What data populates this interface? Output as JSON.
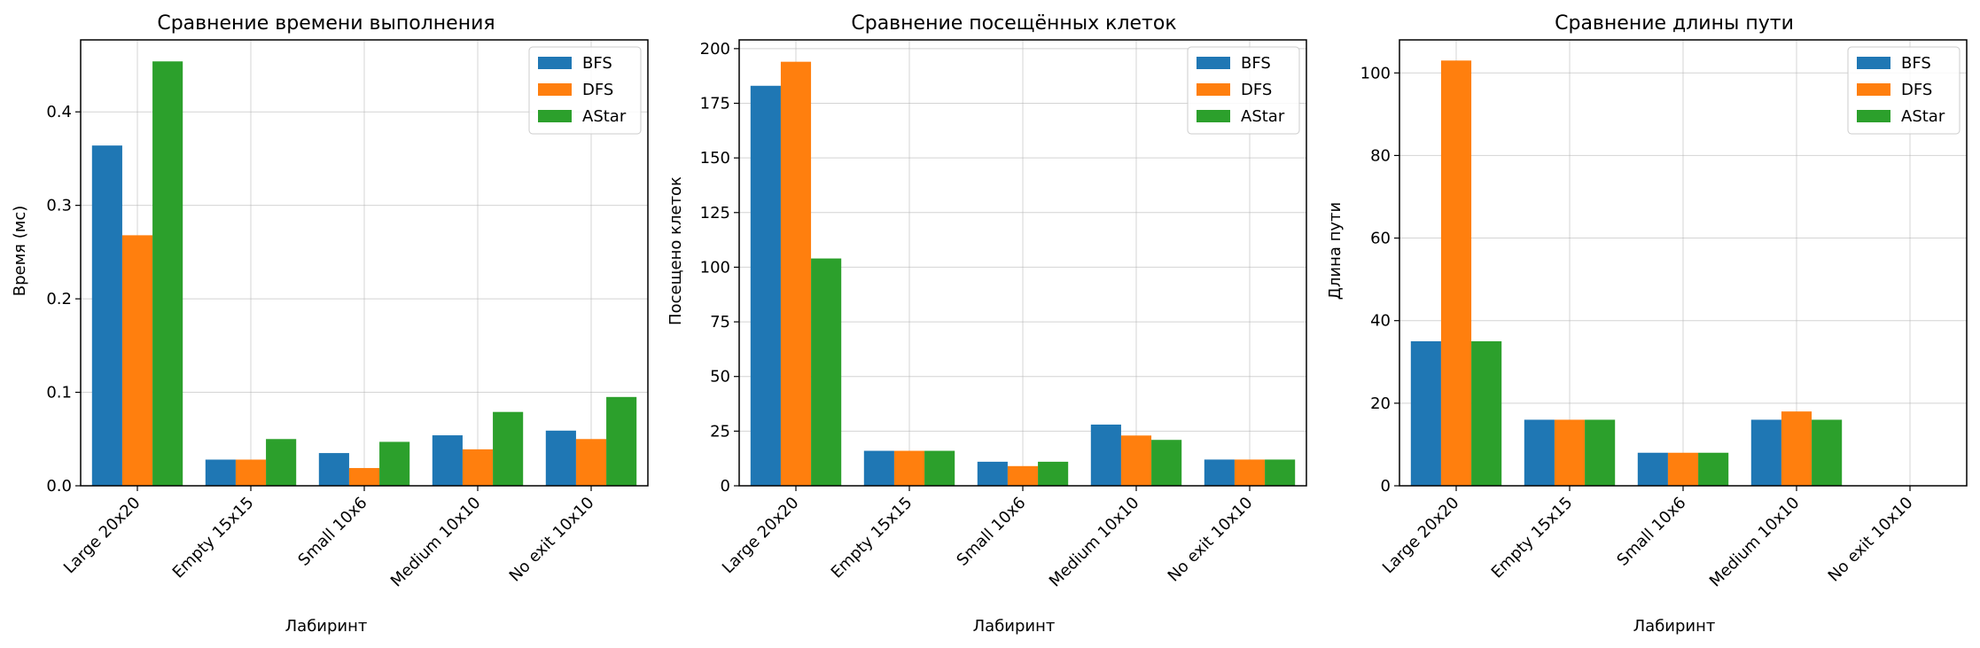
{
  "colors": {
    "BFS": "#1f77b4",
    "DFS": "#ff7f0e",
    "AStar": "#2ca02c",
    "grid": "#b0b0b0"
  },
  "chart_data": [
    {
      "type": "bar",
      "title": "Сравнение времени выполнения",
      "xlabel": "Лабиринт",
      "ylabel": "Время (мс)",
      "categories": [
        "Large 20x20",
        "Empty 15x15",
        "Small 10x6",
        "Medium 10x10",
        "No exit 10x10"
      ],
      "series": [
        {
          "name": "BFS",
          "values": [
            0.364,
            0.028,
            0.035,
            0.054,
            0.059
          ]
        },
        {
          "name": "DFS",
          "values": [
            0.268,
            0.028,
            0.019,
            0.039,
            0.05
          ]
        },
        {
          "name": "AStar",
          "values": [
            0.454,
            0.05,
            0.047,
            0.079,
            0.095
          ]
        }
      ],
      "ylim": [
        0,
        0.477
      ],
      "yticks": [
        0.0,
        0.1,
        0.2,
        0.3,
        0.4
      ],
      "ytick_labels": [
        "0.0",
        "0.1",
        "0.2",
        "0.3",
        "0.4"
      ],
      "grid": true,
      "legend": "top-right"
    },
    {
      "type": "bar",
      "title": "Сравнение посещённых клеток",
      "xlabel": "Лабиринт",
      "ylabel": "Посещено клеток",
      "categories": [
        "Large 20x20",
        "Empty 15x15",
        "Small 10x6",
        "Medium 10x10",
        "No exit 10x10"
      ],
      "series": [
        {
          "name": "BFS",
          "values": [
            183,
            16,
            11,
            28,
            12
          ]
        },
        {
          "name": "DFS",
          "values": [
            194,
            16,
            9,
            23,
            12
          ]
        },
        {
          "name": "AStar",
          "values": [
            104,
            16,
            11,
            21,
            12
          ]
        }
      ],
      "ylim": [
        0,
        204
      ],
      "yticks": [
        0,
        25,
        50,
        75,
        100,
        125,
        150,
        175,
        200
      ],
      "ytick_labels": [
        "0",
        "25",
        "50",
        "75",
        "100",
        "125",
        "150",
        "175",
        "200"
      ],
      "grid": true,
      "legend": "top-right"
    },
    {
      "type": "bar",
      "title": "Сравнение длины пути",
      "xlabel": "Лабиринт",
      "ylabel": "Длина пути",
      "categories": [
        "Large 20x20",
        "Empty 15x15",
        "Small 10x6",
        "Medium 10x10",
        "No exit 10x10"
      ],
      "series": [
        {
          "name": "BFS",
          "values": [
            35,
            16,
            8,
            16,
            0
          ]
        },
        {
          "name": "DFS",
          "values": [
            103,
            16,
            8,
            18,
            0
          ]
        },
        {
          "name": "AStar",
          "values": [
            35,
            16,
            8,
            16,
            0
          ]
        }
      ],
      "ylim": [
        0,
        108
      ],
      "yticks": [
        0,
        20,
        40,
        60,
        80,
        100
      ],
      "ytick_labels": [
        "0",
        "20",
        "40",
        "60",
        "80",
        "100"
      ],
      "grid": true,
      "legend": "top-right"
    }
  ]
}
